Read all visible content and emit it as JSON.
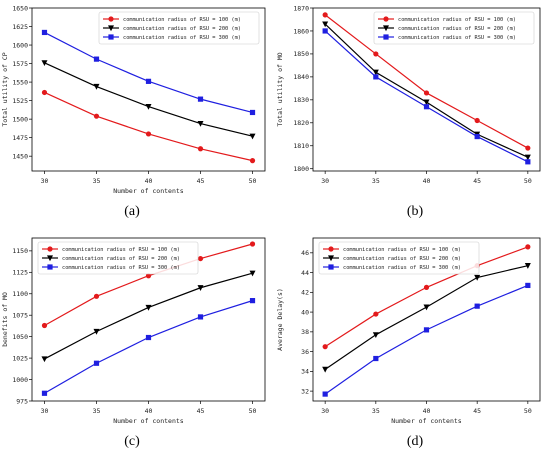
{
  "captions": [
    "(a)",
    "(b)",
    "(c)",
    "(d)"
  ],
  "chart_data": [
    {
      "type": "line",
      "xlabel": "Number of contents",
      "ylabel": "Total utility of CP",
      "x": [
        30,
        35,
        40,
        45,
        50
      ],
      "xticks": [
        30,
        35,
        40,
        45,
        50
      ],
      "ylim": [
        1430,
        1650
      ],
      "yticks": [
        1450,
        1475,
        1500,
        1525,
        1550,
        1575,
        1600,
        1625,
        1650
      ],
      "legend": "top-right",
      "grid": false,
      "series": [
        {
          "name": "communication radius of RSU = 100 (m)",
          "color": "#e31a1c",
          "marker": "circle",
          "values": [
            1536,
            1504,
            1480,
            1460,
            1444
          ]
        },
        {
          "name": "communication radius of RSU = 200 (m)",
          "color": "#000000",
          "marker": "triangle-down",
          "values": [
            1576,
            1544,
            1517,
            1494,
            1477
          ]
        },
        {
          "name": "communication radius of RSU = 300 (m)",
          "color": "#1f1fe0",
          "marker": "square",
          "values": [
            1617,
            1581,
            1551,
            1527,
            1509
          ]
        }
      ]
    },
    {
      "type": "line",
      "xlabel": "",
      "ylabel": "Total utility of MO",
      "x": [
        30,
        35,
        40,
        45,
        50
      ],
      "xticks": [
        30,
        35,
        40,
        45,
        50
      ],
      "ylim": [
        1799,
        1870
      ],
      "yticks": [
        1800,
        1810,
        1820,
        1830,
        1840,
        1850,
        1860,
        1870
      ],
      "legend": "top-right",
      "grid": false,
      "series": [
        {
          "name": "communication radius of RSU = 100 (m)",
          "color": "#e31a1c",
          "marker": "circle",
          "values": [
            1867,
            1850,
            1833,
            1821,
            1809
          ]
        },
        {
          "name": "communication radius of RSU = 200 (m)",
          "color": "#000000",
          "marker": "triangle-down",
          "values": [
            1863,
            1842,
            1829,
            1815,
            1805
          ]
        },
        {
          "name": "communication radius of RSU = 300 (m)",
          "color": "#1f1fe0",
          "marker": "square",
          "values": [
            1860,
            1840,
            1827,
            1814,
            1803
          ]
        }
      ]
    },
    {
      "type": "line",
      "xlabel": "Number of contents",
      "ylabel": "benefits of MO",
      "x": [
        30,
        35,
        40,
        45,
        50
      ],
      "xticks": [
        30,
        35,
        40,
        45,
        50
      ],
      "ylim": [
        975,
        1165
      ],
      "yticks": [
        975,
        1000,
        1025,
        1050,
        1075,
        1100,
        1125,
        1150
      ],
      "legend": "top-left",
      "grid": false,
      "series": [
        {
          "name": "communication radius of RSU = 100 (m)",
          "color": "#e31a1c",
          "marker": "circle",
          "values": [
            1063,
            1097,
            1121,
            1141,
            1158
          ]
        },
        {
          "name": "communication radius of RSU = 200 (m)",
          "color": "#000000",
          "marker": "triangle-down",
          "values": [
            1024,
            1056,
            1084,
            1107,
            1124
          ]
        },
        {
          "name": "communication radius of RSU = 300 (m)",
          "color": "#1f1fe0",
          "marker": "square",
          "values": [
            984,
            1019,
            1049,
            1073,
            1092
          ]
        }
      ]
    },
    {
      "type": "line",
      "xlabel": "Number of contents",
      "ylabel": "Average Delay(s)",
      "x": [
        30,
        35,
        40,
        45,
        50
      ],
      "xticks": [
        30,
        35,
        40,
        45,
        50
      ],
      "ylim": [
        31,
        47.5
      ],
      "yticks": [
        32,
        34,
        36,
        38,
        40,
        42,
        44,
        46
      ],
      "legend": "top-left",
      "grid": false,
      "series": [
        {
          "name": "communication radius of RSU = 100 (m)",
          "color": "#e31a1c",
          "marker": "circle",
          "values": [
            36.5,
            39.8,
            42.5,
            44.7,
            46.6
          ]
        },
        {
          "name": "communication radius of RSU = 200 (m)",
          "color": "#000000",
          "marker": "triangle-down",
          "values": [
            34.2,
            37.7,
            40.5,
            43.5,
            44.7
          ]
        },
        {
          "name": "communication radius of RSU = 300 (m)",
          "color": "#1f1fe0",
          "marker": "square",
          "values": [
            31.7,
            35.3,
            38.2,
            40.6,
            42.7
          ]
        }
      ]
    }
  ]
}
